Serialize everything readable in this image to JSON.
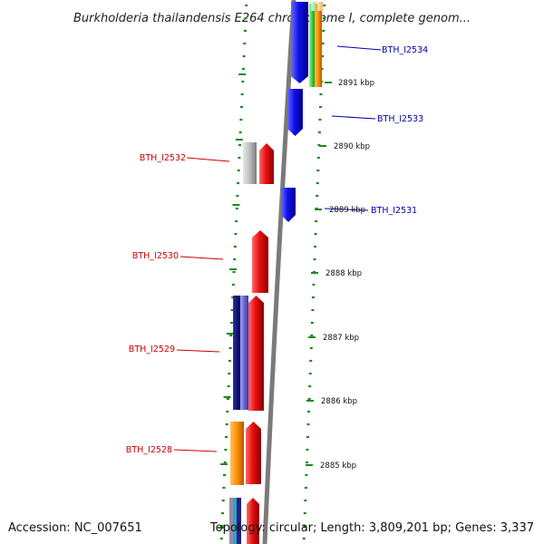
{
  "title": "Burkholderia thailandensis E264 chromosome I, complete genom...",
  "accession_text": "Accession: NC_007651",
  "topology_text": "Topology: circular; Length: 3,809,201 bp; Genes: 3,337",
  "colors": {
    "forward_strand": "#1010e8",
    "reverse_strand": "#e81010",
    "backbone": "#7a7a7a",
    "tick": "#1a8a1a",
    "label_blue": "#0000aa",
    "label_red": "#cc0000"
  },
  "ticks": [
    {
      "kbp": 2891,
      "label": "2891 kbp"
    },
    {
      "kbp": 2890,
      "label": "2890 kbp"
    },
    {
      "kbp": 2889,
      "label": "2889 kbp"
    },
    {
      "kbp": 2888,
      "label": "2888 kbp"
    },
    {
      "kbp": 2887,
      "label": "2887 kbp"
    },
    {
      "kbp": 2886,
      "label": "2886 kbp"
    },
    {
      "kbp": 2885,
      "label": "2885 kbp"
    }
  ],
  "genes": [
    {
      "label": "BTH_I2534",
      "strand": "forward",
      "color": "#1010e8"
    },
    {
      "label": "BTH_I2533",
      "strand": "forward",
      "color": "#1010e8"
    },
    {
      "label": "BTH_I2532",
      "strand": "reverse",
      "color": "#e81010"
    },
    {
      "label": "BTH_I2531",
      "strand": "forward",
      "color": "#1010e8"
    },
    {
      "label": "BTH_I2530",
      "strand": "reverse",
      "color": "#e81010"
    },
    {
      "label": "BTH_I2529",
      "strand": "reverse",
      "color": "#e81010"
    },
    {
      "label": "BTH_I2528",
      "strand": "reverse",
      "color": "#e81010"
    }
  ]
}
